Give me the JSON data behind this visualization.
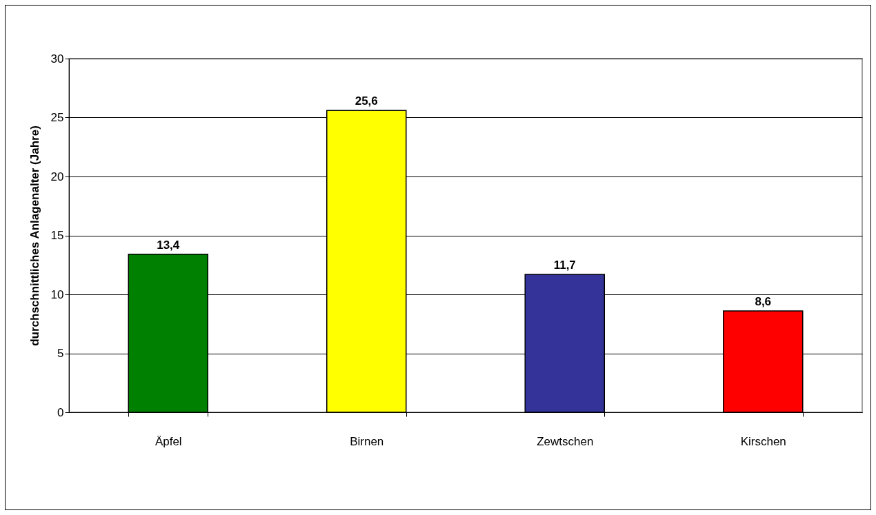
{
  "chart_data": {
    "type": "bar",
    "ylabel": "durchschnittliches Anlagenalter (Jahre)",
    "categories": [
      "Äpfel",
      "Birnen",
      "Zewtschen",
      "Kirschen"
    ],
    "values": [
      13.4,
      25.6,
      11.7,
      8.6
    ],
    "colors": [
      "#008000",
      "#ffff00",
      "#333399",
      "#ff0000"
    ],
    "value_labels": [
      "13,4",
      "25,6",
      "11,7",
      "8,6"
    ],
    "ylim": [
      0,
      30
    ],
    "yticks": [
      0,
      5,
      10,
      15,
      20,
      25,
      30
    ],
    "grid": "y"
  }
}
